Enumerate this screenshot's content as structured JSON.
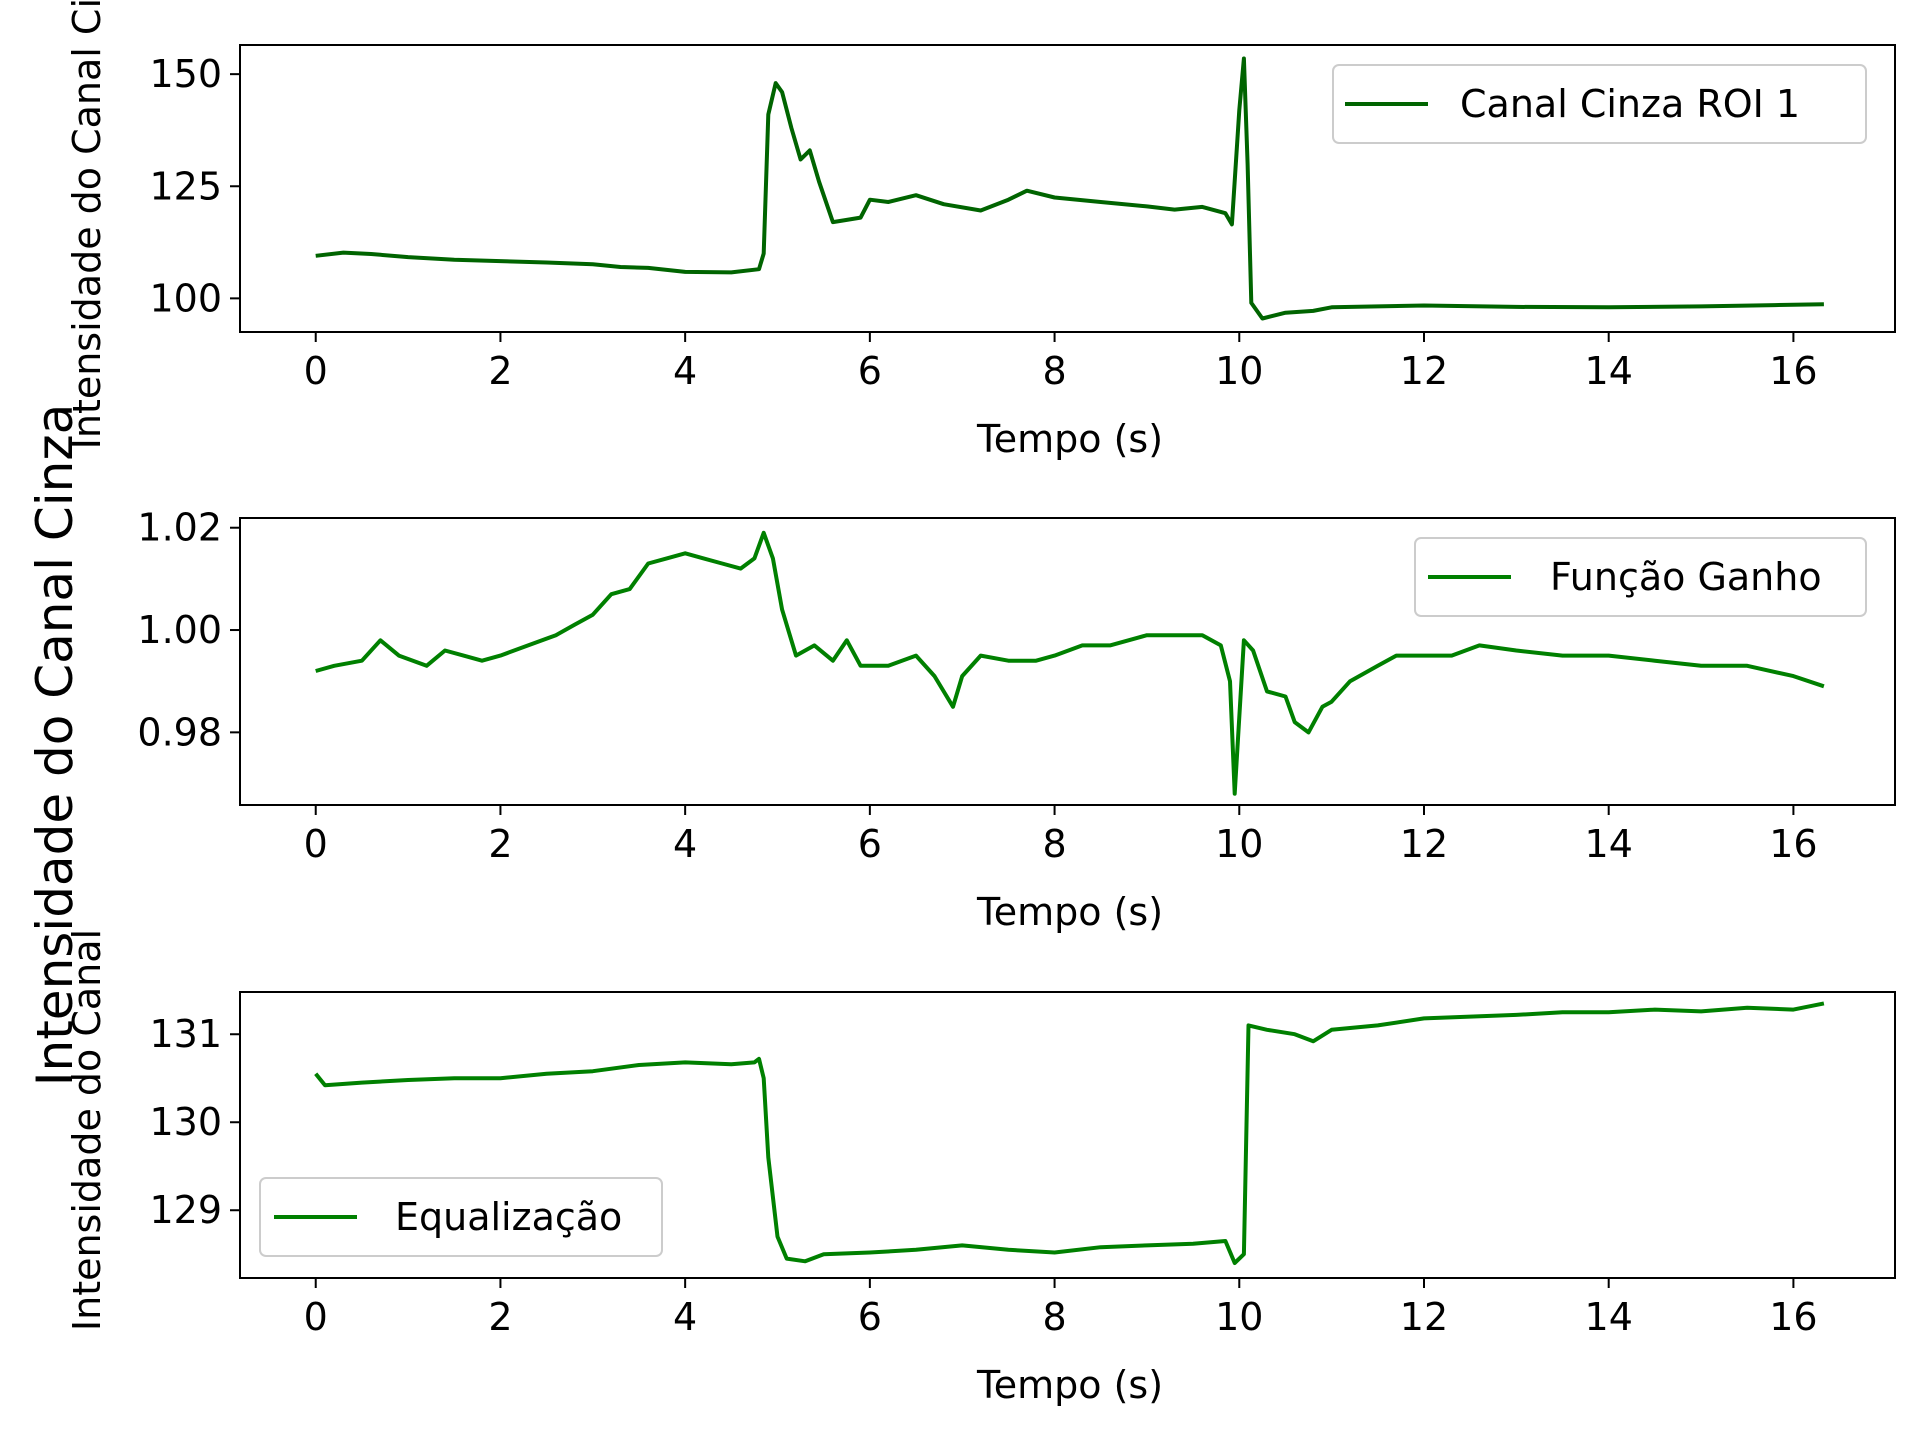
{
  "figure": {
    "ylabel": "Intensidade do Canal Cinza",
    "colors": {
      "dark_green": "#006400",
      "green": "#008000",
      "axis": "#000000"
    }
  },
  "chart_data": [
    {
      "type": "line",
      "xlabel": "Tempo (s)",
      "ylabel": "Intensidade do Canal Cinza",
      "xlim": [
        -0.82,
        17.1
      ],
      "ylim": [
        92.5,
        156.5
      ],
      "xticks": [
        0,
        2,
        4,
        6,
        8,
        10,
        12,
        14,
        16
      ],
      "yticks": [
        100,
        125,
        150
      ],
      "legend_position": "upper right",
      "series": [
        {
          "name": "Canal Cinza ROI 1",
          "color": "#006400",
          "points": [
            [
              0,
              109.5
            ],
            [
              0.3,
              110.2
            ],
            [
              0.6,
              109.9
            ],
            [
              1,
              109.2
            ],
            [
              1.5,
              108.6
            ],
            [
              2,
              108.3
            ],
            [
              2.5,
              108.0
            ],
            [
              3,
              107.6
            ],
            [
              3.3,
              107.0
            ],
            [
              3.6,
              106.8
            ],
            [
              4,
              105.9
            ],
            [
              4.5,
              105.8
            ],
            [
              4.8,
              106.5
            ],
            [
              4.85,
              110
            ],
            [
              4.9,
              141
            ],
            [
              4.98,
              148
            ],
            [
              5.05,
              146
            ],
            [
              5.15,
              138
            ],
            [
              5.25,
              131
            ],
            [
              5.35,
              133
            ],
            [
              5.45,
              126
            ],
            [
              5.6,
              117
            ],
            [
              5.75,
              117.5
            ],
            [
              5.9,
              118
            ],
            [
              6.0,
              122
            ],
            [
              6.2,
              121.5
            ],
            [
              6.5,
              123
            ],
            [
              6.8,
              121
            ],
            [
              7.2,
              119.6
            ],
            [
              7.5,
              122
            ],
            [
              7.7,
              124
            ],
            [
              8,
              122.5
            ],
            [
              8.5,
              121.5
            ],
            [
              9,
              120.5
            ],
            [
              9.3,
              119.8
            ],
            [
              9.6,
              120.4
            ],
            [
              9.85,
              119
            ],
            [
              9.92,
              116.5
            ],
            [
              10.0,
              142
            ],
            [
              10.05,
              153.5
            ],
            [
              10.09,
              130
            ],
            [
              10.13,
              99
            ],
            [
              10.25,
              95.5
            ],
            [
              10.5,
              96.8
            ],
            [
              10.8,
              97.2
            ],
            [
              11.0,
              98.0
            ],
            [
              11.5,
              98.2
            ],
            [
              12,
              98.4
            ],
            [
              13,
              98.1
            ],
            [
              14,
              98.0
            ],
            [
              15,
              98.2
            ],
            [
              15.8,
              98.5
            ],
            [
              16.33,
              98.7
            ]
          ]
        }
      ]
    },
    {
      "type": "line",
      "xlabel": "Tempo (s)",
      "ylabel": "",
      "xlim": [
        -0.82,
        17.1
      ],
      "ylim": [
        0.9658,
        1.0219
      ],
      "xticks": [
        0,
        2,
        4,
        6,
        8,
        10,
        12,
        14,
        16
      ],
      "yticks": [
        0.98,
        1.0,
        1.02
      ],
      "yticklabels": [
        "0.98",
        "1.00",
        "1.02"
      ],
      "legend_position": "upper right",
      "series": [
        {
          "name": "Função Ganho",
          "color": "#008000",
          "points": [
            [
              0,
              0.992
            ],
            [
              0.2,
              0.993
            ],
            [
              0.5,
              0.994
            ],
            [
              0.7,
              0.998
            ],
            [
              0.9,
              0.995
            ],
            [
              1.2,
              0.993
            ],
            [
              1.4,
              0.996
            ],
            [
              1.6,
              0.995
            ],
            [
              1.8,
              0.994
            ],
            [
              2.0,
              0.995
            ],
            [
              2.3,
              0.997
            ],
            [
              2.6,
              0.999
            ],
            [
              2.8,
              1.001
            ],
            [
              3.0,
              1.003
            ],
            [
              3.2,
              1.007
            ],
            [
              3.4,
              1.008
            ],
            [
              3.6,
              1.013
            ],
            [
              3.8,
              1.014
            ],
            [
              4.0,
              1.015
            ],
            [
              4.2,
              1.014
            ],
            [
              4.4,
              1.013
            ],
            [
              4.6,
              1.012
            ],
            [
              4.75,
              1.014
            ],
            [
              4.85,
              1.019
            ],
            [
              4.95,
              1.014
            ],
            [
              5.05,
              1.004
            ],
            [
              5.2,
              0.995
            ],
            [
              5.4,
              0.997
            ],
            [
              5.6,
              0.994
            ],
            [
              5.75,
              0.998
            ],
            [
              5.9,
              0.993
            ],
            [
              6.2,
              0.993
            ],
            [
              6.5,
              0.995
            ],
            [
              6.7,
              0.991
            ],
            [
              6.8,
              0.988
            ],
            [
              6.9,
              0.985
            ],
            [
              7.0,
              0.991
            ],
            [
              7.2,
              0.995
            ],
            [
              7.5,
              0.994
            ],
            [
              7.8,
              0.994
            ],
            [
              8.0,
              0.995
            ],
            [
              8.3,
              0.997
            ],
            [
              8.6,
              0.997
            ],
            [
              9.0,
              0.999
            ],
            [
              9.3,
              0.999
            ],
            [
              9.6,
              0.999
            ],
            [
              9.8,
              0.997
            ],
            [
              9.9,
              0.99
            ],
            [
              9.95,
              0.968
            ],
            [
              10.05,
              0.998
            ],
            [
              10.15,
              0.996
            ],
            [
              10.3,
              0.988
            ],
            [
              10.5,
              0.987
            ],
            [
              10.6,
              0.982
            ],
            [
              10.75,
              0.98
            ],
            [
              10.9,
              0.985
            ],
            [
              11.0,
              0.986
            ],
            [
              11.2,
              0.99
            ],
            [
              11.5,
              0.993
            ],
            [
              11.7,
              0.995
            ],
            [
              12.0,
              0.995
            ],
            [
              12.3,
              0.995
            ],
            [
              12.6,
              0.997
            ],
            [
              13.0,
              0.996
            ],
            [
              13.5,
              0.995
            ],
            [
              14.0,
              0.995
            ],
            [
              14.5,
              0.994
            ],
            [
              15.0,
              0.993
            ],
            [
              15.5,
              0.993
            ],
            [
              16.0,
              0.991
            ],
            [
              16.33,
              0.989
            ]
          ]
        }
      ]
    },
    {
      "type": "line",
      "xlabel": "Tempo (s)",
      "ylabel": "Intensidade do Canal",
      "xlim": [
        -0.82,
        17.1
      ],
      "ylim": [
        128.23,
        131.48
      ],
      "xticks": [
        0,
        2,
        4,
        6,
        8,
        10,
        12,
        14,
        16
      ],
      "yticks": [
        129,
        130,
        131
      ],
      "legend_position": "lower left",
      "series": [
        {
          "name": "Equalização",
          "color": "#008000",
          "points": [
            [
              0,
              130.55
            ],
            [
              0.1,
              130.42
            ],
            [
              0.5,
              130.45
            ],
            [
              1.0,
              130.48
            ],
            [
              1.5,
              130.5
            ],
            [
              2.0,
              130.5
            ],
            [
              2.5,
              130.55
            ],
            [
              3.0,
              130.58
            ],
            [
              3.5,
              130.65
            ],
            [
              4.0,
              130.68
            ],
            [
              4.5,
              130.66
            ],
            [
              4.75,
              130.68
            ],
            [
              4.8,
              130.72
            ],
            [
              4.85,
              130.5
            ],
            [
              4.9,
              129.6
            ],
            [
              5.0,
              128.7
            ],
            [
              5.1,
              128.45
            ],
            [
              5.3,
              128.42
            ],
            [
              5.5,
              128.5
            ],
            [
              6.0,
              128.52
            ],
            [
              6.5,
              128.55
            ],
            [
              7.0,
              128.6
            ],
            [
              7.5,
              128.55
            ],
            [
              8.0,
              128.52
            ],
            [
              8.5,
              128.58
            ],
            [
              9.0,
              128.6
            ],
            [
              9.5,
              128.62
            ],
            [
              9.85,
              128.65
            ],
            [
              9.95,
              128.4
            ],
            [
              10.05,
              128.5
            ],
            [
              10.1,
              131.1
            ],
            [
              10.3,
              131.05
            ],
            [
              10.6,
              131.0
            ],
            [
              10.8,
              130.92
            ],
            [
              11.0,
              131.05
            ],
            [
              11.5,
              131.1
            ],
            [
              12.0,
              131.18
            ],
            [
              12.5,
              131.2
            ],
            [
              13.0,
              131.22
            ],
            [
              13.5,
              131.25
            ],
            [
              14.0,
              131.25
            ],
            [
              14.5,
              131.28
            ],
            [
              15.0,
              131.26
            ],
            [
              15.5,
              131.3
            ],
            [
              16.0,
              131.28
            ],
            [
              16.33,
              131.35
            ]
          ]
        }
      ]
    }
  ]
}
